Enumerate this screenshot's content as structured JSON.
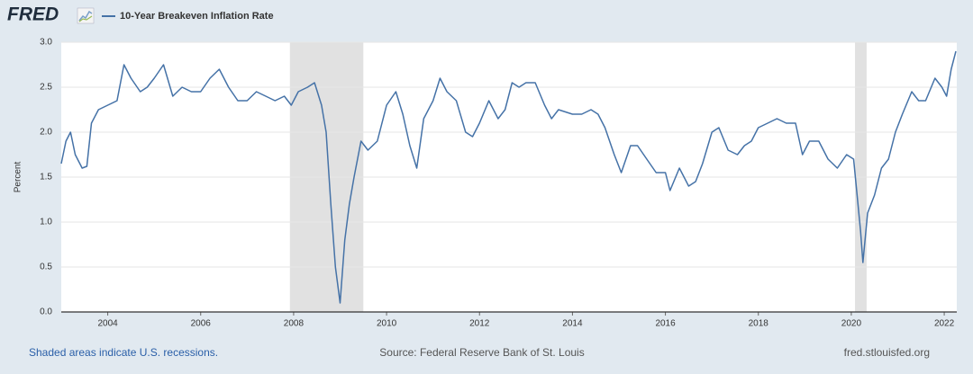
{
  "logo": "FRED",
  "footer": {
    "note": "Shaded areas indicate U.S. recessions.",
    "source": "Source: Federal Reserve Bank of St. Louis",
    "site": "fred.stlouisfed.org"
  },
  "chart_data": {
    "type": "line",
    "y_label": "Percent",
    "x": [
      2003.0,
      2003.1,
      2003.2,
      2003.3,
      2003.45,
      2003.55,
      2003.65,
      2003.8,
      2004.0,
      2004.2,
      2004.35,
      2004.5,
      2004.7,
      2004.85,
      2005.0,
      2005.2,
      2005.4,
      2005.6,
      2005.8,
      2006.0,
      2006.2,
      2006.4,
      2006.6,
      2006.8,
      2007.0,
      2007.2,
      2007.4,
      2007.6,
      2007.8,
      2007.95,
      2008.1,
      2008.3,
      2008.45,
      2008.6,
      2008.7,
      2008.8,
      2008.9,
      2009.0,
      2009.1,
      2009.2,
      2009.3,
      2009.45,
      2009.6,
      2009.8,
      2010.0,
      2010.2,
      2010.35,
      2010.5,
      2010.65,
      2010.8,
      2011.0,
      2011.15,
      2011.3,
      2011.5,
      2011.7,
      2011.85,
      2012.0,
      2012.2,
      2012.4,
      2012.55,
      2012.7,
      2012.85,
      2013.0,
      2013.2,
      2013.4,
      2013.55,
      2013.7,
      2014.0,
      2014.2,
      2014.4,
      2014.55,
      2014.7,
      2014.9,
      2015.05,
      2015.25,
      2015.4,
      2015.6,
      2015.8,
      2016.0,
      2016.1,
      2016.3,
      2016.5,
      2016.65,
      2016.8,
      2017.0,
      2017.15,
      2017.35,
      2017.55,
      2017.7,
      2017.85,
      2018.0,
      2018.2,
      2018.4,
      2018.6,
      2018.8,
      2018.95,
      2019.1,
      2019.3,
      2019.5,
      2019.7,
      2019.9,
      2020.05,
      2020.2,
      2020.25,
      2020.35,
      2020.5,
      2020.65,
      2020.8,
      2020.95,
      2021.1,
      2021.3,
      2021.45,
      2021.6,
      2021.8,
      2021.95,
      2022.05,
      2022.15,
      2022.25
    ],
    "series": [
      {
        "name": "10-Year Breakeven Inflation Rate",
        "color": "#4572a7",
        "values": [
          1.65,
          1.9,
          2.0,
          1.75,
          1.6,
          1.62,
          2.1,
          2.25,
          2.3,
          2.35,
          2.75,
          2.6,
          2.45,
          2.5,
          2.6,
          2.75,
          2.4,
          2.5,
          2.45,
          2.45,
          2.6,
          2.7,
          2.5,
          2.35,
          2.35,
          2.45,
          2.4,
          2.35,
          2.4,
          2.3,
          2.45,
          2.5,
          2.55,
          2.3,
          2.0,
          1.2,
          0.5,
          0.1,
          0.8,
          1.2,
          1.5,
          1.9,
          1.8,
          1.9,
          2.3,
          2.45,
          2.2,
          1.85,
          1.6,
          2.15,
          2.35,
          2.6,
          2.45,
          2.35,
          2.0,
          1.95,
          2.1,
          2.35,
          2.15,
          2.25,
          2.55,
          2.5,
          2.55,
          2.55,
          2.3,
          2.15,
          2.25,
          2.2,
          2.2,
          2.25,
          2.2,
          2.05,
          1.75,
          1.55,
          1.85,
          1.85,
          1.7,
          1.55,
          1.55,
          1.35,
          1.6,
          1.4,
          1.45,
          1.65,
          2.0,
          2.05,
          1.8,
          1.75,
          1.85,
          1.9,
          2.05,
          2.1,
          2.15,
          2.1,
          2.1,
          1.75,
          1.9,
          1.9,
          1.7,
          1.6,
          1.75,
          1.7,
          0.9,
          0.55,
          1.1,
          1.3,
          1.6,
          1.7,
          2.0,
          2.2,
          2.45,
          2.35,
          2.35,
          2.6,
          2.5,
          2.4,
          2.7,
          2.9
        ]
      }
    ],
    "recessions": [
      {
        "start": 2007.92,
        "end": 2009.5
      },
      {
        "start": 2020.08,
        "end": 2020.33
      }
    ],
    "recession_color": "#e1e1e1",
    "xlim": [
      2003.0,
      2022.27
    ],
    "xticks": [
      2004,
      2006,
      2008,
      2010,
      2012,
      2014,
      2016,
      2018,
      2020,
      2022
    ],
    "ylim": [
      0,
      3
    ],
    "yticks": [
      {
        "value": 0,
        "label": "0.0"
      },
      0.5,
      {
        "value": 1,
        "label": "1.0"
      },
      1.5,
      {
        "value": 2,
        "label": "2.0"
      },
      2.5,
      {
        "value": 3,
        "label": "3.0"
      }
    ],
    "grid": true
  }
}
